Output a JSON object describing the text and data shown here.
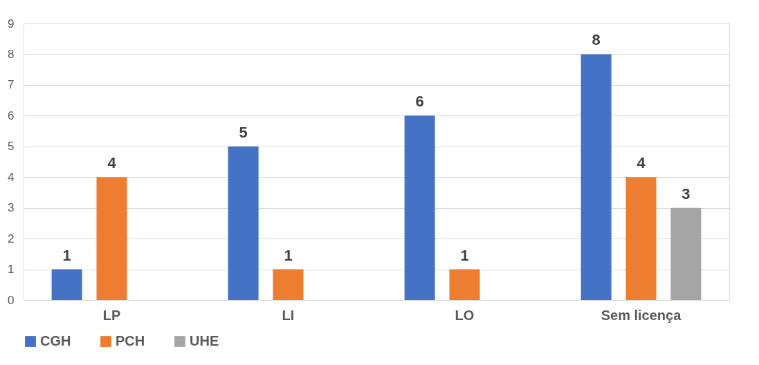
{
  "chart_data": {
    "type": "bar",
    "categories": [
      "LP",
      "LI",
      "LO",
      "Sem licença"
    ],
    "series": [
      {
        "name": "CGH",
        "color": "#4472c4",
        "values": [
          1,
          5,
          6,
          8
        ]
      },
      {
        "name": "PCH",
        "color": "#ed7d31",
        "values": [
          4,
          1,
          1,
          4
        ]
      },
      {
        "name": "UHE",
        "color": "#a5a5a5",
        "values": [
          null,
          null,
          null,
          3
        ]
      }
    ],
    "ylim": [
      0,
      9
    ],
    "yticks": [
      0,
      1,
      2,
      3,
      4,
      5,
      6,
      7,
      8,
      9
    ],
    "grid": "y",
    "legend": "bottom",
    "data_labels": true
  }
}
